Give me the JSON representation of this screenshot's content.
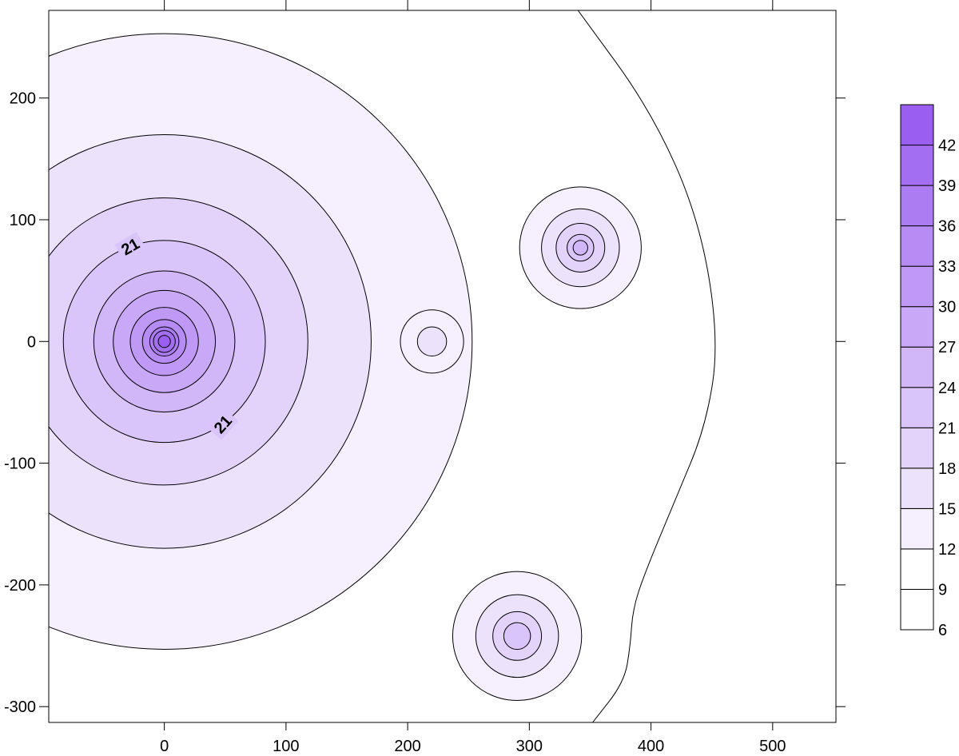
{
  "chart_data": {
    "type": "contour",
    "title": "",
    "xlabel": "",
    "ylabel": "",
    "xlim": [
      -95,
      552
    ],
    "ylim": [
      -313,
      272
    ],
    "x_ticks": [
      0,
      100,
      200,
      300,
      400,
      500
    ],
    "y_ticks": [
      -300,
      -200,
      -100,
      0,
      100,
      200
    ],
    "legend_placement": "right",
    "grid": false,
    "sources": [
      {
        "x": 0,
        "y": 0,
        "peak": 44,
        "radii": {
          "12": 253,
          "15": 170,
          "18": 118,
          "21": 83,
          "24": 58,
          "27": 42,
          "30": 28,
          "33": 18,
          "36": 12,
          "39": 9,
          "42": 5
        }
      },
      {
        "x": 220,
        "y": 0,
        "peak": 16,
        "radii": {
          "12": 26,
          "15": 12
        }
      },
      {
        "x": 342,
        "y": 77,
        "peak": 25,
        "radii": {
          "12": 50,
          "15": 32,
          "18": 20,
          "21": 11,
          "24": 6
        }
      },
      {
        "x": 290,
        "y": -242,
        "peak": 24,
        "radii": {
          "12": 53,
          "15": 34,
          "18": 20,
          "21": 11
        }
      }
    ],
    "contour_9": [
      [
        340,
        272
      ],
      [
        400,
        190
      ],
      [
        440,
        100
      ],
      [
        456,
        0
      ],
      [
        445,
        -70
      ],
      [
        420,
        -130
      ],
      [
        395,
        -190
      ],
      [
        385,
        -220
      ],
      [
        383,
        -250
      ],
      [
        378,
        -280
      ],
      [
        352,
        -313
      ]
    ],
    "contour_labels": [
      {
        "text": "21",
        "x": -28,
        "y": 78,
        "angle": -30
      },
      {
        "text": "21",
        "x": 48,
        "y": -68,
        "angle": -48
      }
    ],
    "color_levels": [
      6,
      9,
      12,
      15,
      18,
      21,
      24,
      27,
      30,
      33,
      36,
      39,
      42,
      45
    ],
    "colorbar_labels": [
      "42",
      "39",
      "36",
      "33",
      "30",
      "27",
      "24",
      "21",
      "18",
      "15",
      "12",
      "9",
      "6"
    ],
    "color_low": "#ffffff",
    "color_high": "#9a5ff0",
    "line_color": "#000000"
  }
}
